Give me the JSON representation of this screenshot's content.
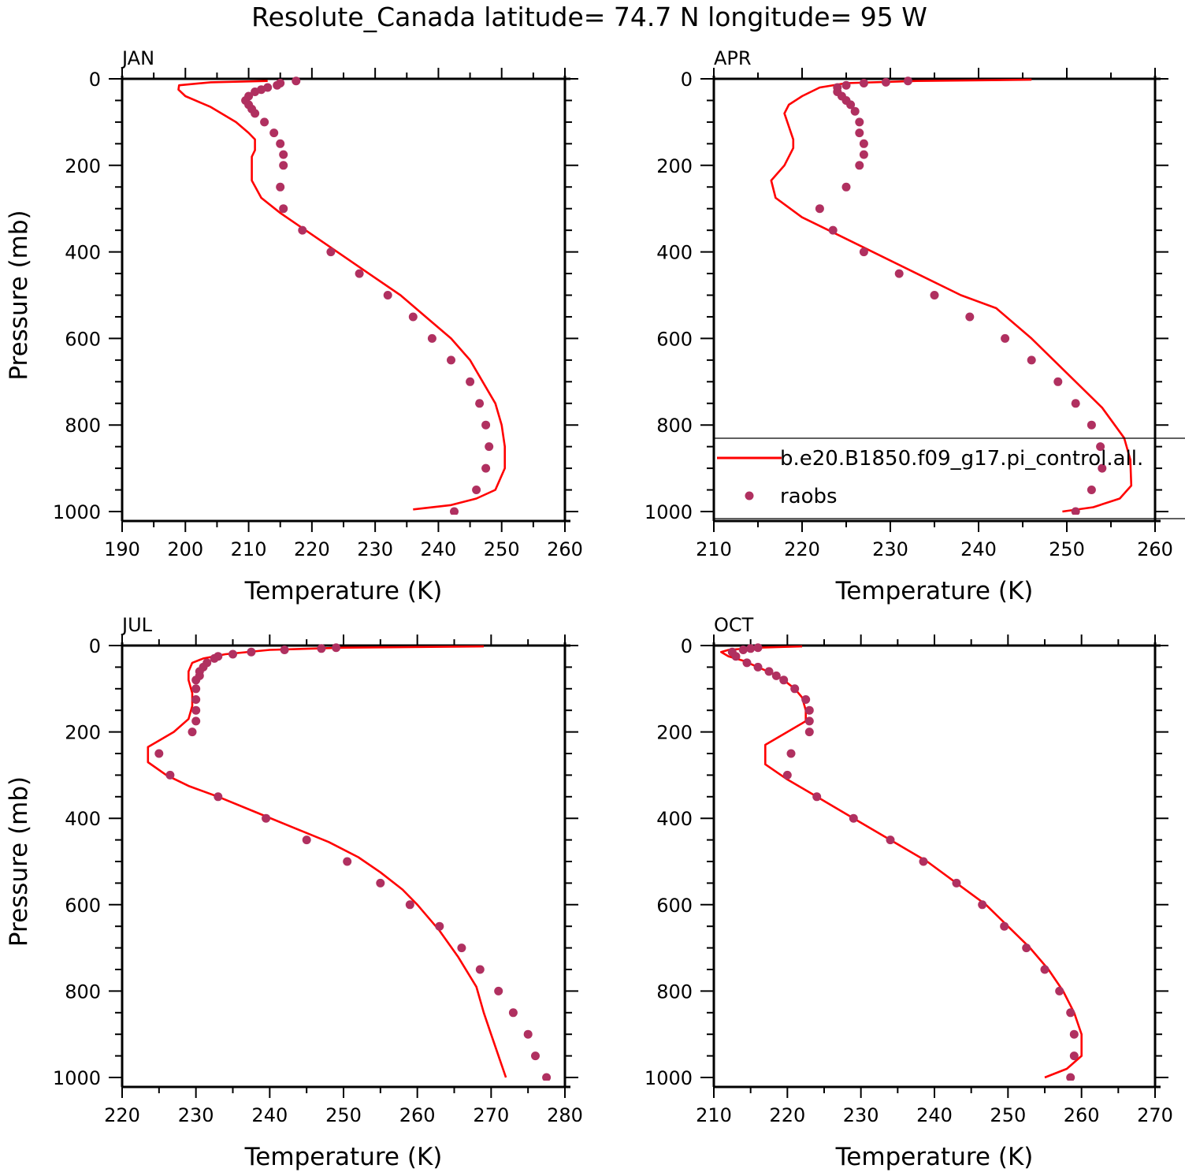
{
  "title": "Resolute_Canada  latitude= 74.7 N longitude= 95 W",
  "colors": {
    "model": "#ff0000",
    "obs": "#b03060",
    "axis": "#000000"
  },
  "legend": {
    "model_label": "b.e20.B1850.f09_g17.pi_control.all.",
    "obs_label": "raobs"
  },
  "chart_data": [
    {
      "type": "line",
      "panel": "JAN",
      "xlabel": "Temperature (K)",
      "ylabel": "Pressure (mb)",
      "xlim": [
        190,
        260
      ],
      "xticks": [
        190,
        200,
        210,
        220,
        230,
        240,
        250,
        260
      ],
      "ylim": [
        0,
        1000
      ],
      "yticks": [
        0,
        200,
        400,
        600,
        800,
        1000
      ],
      "y_inverted": true,
      "series": [
        {
          "name": "b.e20.B1850.f09_g17.pi_control.all.",
          "style": "line",
          "points": [
            [
              213,
              5
            ],
            [
              204,
              8
            ],
            [
              199,
              15
            ],
            [
              198.9,
              25
            ],
            [
              200,
              40
            ],
            [
              204,
              65
            ],
            [
              208,
              100
            ],
            [
              210,
              125
            ],
            [
              211,
              140
            ],
            [
              211,
              165
            ],
            [
              210.5,
              180
            ],
            [
              210.5,
              200
            ],
            [
              210.5,
              235
            ],
            [
              212,
              275
            ],
            [
              215,
              310
            ],
            [
              219,
              350
            ],
            [
              224,
              400
            ],
            [
              229,
              450
            ],
            [
              234,
              500
            ],
            [
              238,
              550
            ],
            [
              242,
              600
            ],
            [
              245,
              650
            ],
            [
              247,
              700
            ],
            [
              249,
              750
            ],
            [
              250,
              800
            ],
            [
              250.5,
              850
            ],
            [
              250.5,
              900
            ],
            [
              249,
              950
            ],
            [
              246,
              970
            ],
            [
              242,
              985
            ],
            [
              236,
              995
            ]
          ]
        },
        {
          "name": "raobs",
          "style": "marker",
          "points": [
            [
              217.5,
              5
            ],
            [
              215,
              10
            ],
            [
              214.5,
              15
            ],
            [
              213,
              20
            ],
            [
              212,
              25
            ],
            [
              211,
              30
            ],
            [
              210,
              40
            ],
            [
              209.5,
              50
            ],
            [
              210,
              60
            ],
            [
              210.5,
              70
            ],
            [
              211,
              80
            ],
            [
              212.5,
              100
            ],
            [
              214,
              125
            ],
            [
              215,
              150
            ],
            [
              215.5,
              175
            ],
            [
              215.5,
              200
            ],
            [
              215,
              250
            ],
            [
              215.5,
              300
            ],
            [
              218.5,
              350
            ],
            [
              223,
              400
            ],
            [
              227.5,
              450
            ],
            [
              232,
              500
            ],
            [
              236,
              550
            ],
            [
              239,
              600
            ],
            [
              242,
              650
            ],
            [
              245,
              700
            ],
            [
              246.5,
              750
            ],
            [
              247.5,
              800
            ],
            [
              248,
              850
            ],
            [
              247.5,
              900
            ],
            [
              246,
              950
            ],
            [
              242.5,
              1000
            ]
          ]
        }
      ]
    },
    {
      "type": "line",
      "panel": "APR",
      "xlabel": "Temperature (K)",
      "ylabel": "",
      "xlim": [
        210,
        260
      ],
      "xticks": [
        210,
        220,
        230,
        240,
        250,
        260
      ],
      "ylim": [
        0,
        1000
      ],
      "yticks": [
        0,
        200,
        400,
        600,
        800,
        1000
      ],
      "y_inverted": true,
      "series": [
        {
          "name": "b.e20.B1850.f09_g17.pi_control.all.",
          "style": "line",
          "points": [
            [
              246,
              2
            ],
            [
              233,
              5
            ],
            [
              225,
              10
            ],
            [
              222,
              20
            ],
            [
              220,
              40
            ],
            [
              218.5,
              60
            ],
            [
              218,
              80
            ],
            [
              218.5,
              110
            ],
            [
              219,
              140
            ],
            [
              219,
              160
            ],
            [
              218,
              200
            ],
            [
              216.5,
              235
            ],
            [
              217,
              275
            ],
            [
              220,
              320
            ],
            [
              224,
              360
            ],
            [
              228,
              400
            ],
            [
              233,
              450
            ],
            [
              238,
              500
            ],
            [
              242,
              530
            ],
            [
              246,
              600
            ],
            [
              250,
              680
            ],
            [
              254,
              760
            ],
            [
              256.5,
              830
            ],
            [
              257.2,
              880
            ],
            [
              257.3,
              940
            ],
            [
              256,
              970
            ],
            [
              253,
              990
            ],
            [
              249.5,
              1000
            ]
          ]
        },
        {
          "name": "raobs",
          "style": "marker",
          "points": [
            [
              232,
              5
            ],
            [
              229.5,
              8
            ],
            [
              227,
              10
            ],
            [
              225,
              15
            ],
            [
              224,
              20
            ],
            [
              224,
              30
            ],
            [
              224.5,
              40
            ],
            [
              225,
              50
            ],
            [
              225.5,
              60
            ],
            [
              226,
              75
            ],
            [
              226.5,
              100
            ],
            [
              226.5,
              125
            ],
            [
              227,
              150
            ],
            [
              227,
              175
            ],
            [
              226.5,
              200
            ],
            [
              225,
              250
            ],
            [
              222,
              300
            ],
            [
              223.5,
              350
            ],
            [
              227,
              400
            ],
            [
              231,
              450
            ],
            [
              235,
              500
            ],
            [
              239,
              550
            ],
            [
              243,
              600
            ],
            [
              246,
              650
            ],
            [
              249,
              700
            ],
            [
              251,
              750
            ],
            [
              252.8,
              800
            ],
            [
              253.8,
              850
            ],
            [
              254,
              900
            ],
            [
              252.8,
              950
            ],
            [
              251,
              1000
            ]
          ]
        }
      ]
    },
    {
      "type": "line",
      "panel": "JUL",
      "xlabel": "Temperature (K)",
      "ylabel": "Pressure (mb)",
      "xlim": [
        220,
        280
      ],
      "xticks": [
        220,
        230,
        240,
        250,
        260,
        270,
        280
      ],
      "ylim": [
        0,
        1000
      ],
      "yticks": [
        0,
        200,
        400,
        600,
        800,
        1000
      ],
      "y_inverted": true,
      "series": [
        {
          "name": "b.e20.B1850.f09_g17.pi_control.all.",
          "style": "line",
          "points": [
            [
              269,
              2
            ],
            [
              250,
              5
            ],
            [
              240,
              10
            ],
            [
              234,
              20
            ],
            [
              231,
              30
            ],
            [
              229.5,
              40
            ],
            [
              229,
              60
            ],
            [
              229,
              80
            ],
            [
              229.5,
              110
            ],
            [
              229.5,
              140
            ],
            [
              229,
              170
            ],
            [
              227,
              200
            ],
            [
              225,
              220
            ],
            [
              223.5,
              235
            ],
            [
              223.5,
              270
            ],
            [
              226,
              300
            ],
            [
              229,
              325
            ],
            [
              233,
              350
            ],
            [
              238,
              385
            ],
            [
              243,
              420
            ],
            [
              248,
              455
            ],
            [
              252,
              490
            ],
            [
              255,
              525
            ],
            [
              258,
              565
            ],
            [
              260,
              600
            ],
            [
              263,
              660
            ],
            [
              265.5,
              720
            ],
            [
              268,
              790
            ],
            [
              269,
              850
            ],
            [
              270,
              900
            ],
            [
              271,
              950
            ],
            [
              272,
              1000
            ]
          ]
        },
        {
          "name": "raobs",
          "style": "marker",
          "points": [
            [
              249,
              5
            ],
            [
              247,
              7
            ],
            [
              242,
              10
            ],
            [
              237.5,
              15
            ],
            [
              235,
              20
            ],
            [
              233,
              25
            ],
            [
              232.5,
              30
            ],
            [
              231.5,
              40
            ],
            [
              231,
              50
            ],
            [
              230.5,
              60
            ],
            [
              230.5,
              70
            ],
            [
              230,
              80
            ],
            [
              230,
              100
            ],
            [
              230,
              125
            ],
            [
              230,
              150
            ],
            [
              230,
              175
            ],
            [
              229.5,
              200
            ],
            [
              225,
              250
            ],
            [
              226.5,
              300
            ],
            [
              233,
              350
            ],
            [
              239.5,
              400
            ],
            [
              245,
              450
            ],
            [
              250.5,
              500
            ],
            [
              255,
              550
            ],
            [
              259,
              600
            ],
            [
              263,
              650
            ],
            [
              266,
              700
            ],
            [
              268.5,
              750
            ],
            [
              271,
              800
            ],
            [
              273,
              850
            ],
            [
              275,
              900
            ],
            [
              276,
              950
            ],
            [
              277.5,
              1000
            ]
          ]
        }
      ]
    },
    {
      "type": "line",
      "panel": "OCT",
      "xlabel": "Temperature (K)",
      "ylabel": "",
      "xlim": [
        210,
        270
      ],
      "xticks": [
        210,
        220,
        230,
        240,
        250,
        260,
        270
      ],
      "ylim": [
        0,
        1000
      ],
      "yticks": [
        0,
        200,
        400,
        600,
        800,
        1000
      ],
      "y_inverted": true,
      "series": [
        {
          "name": "b.e20.B1850.f09_g17.pi_control.all.",
          "style": "line",
          "points": [
            [
              222,
              2
            ],
            [
              216,
              5
            ],
            [
              212,
              10
            ],
            [
              211,
              15
            ],
            [
              212,
              25
            ],
            [
              214,
              35
            ],
            [
              216,
              50
            ],
            [
              218,
              65
            ],
            [
              219.5,
              80
            ],
            [
              221,
              100
            ],
            [
              222,
              120
            ],
            [
              222.5,
              150
            ],
            [
              222.5,
              175
            ],
            [
              220,
              200
            ],
            [
              217,
              230
            ],
            [
              217,
              275
            ],
            [
              220,
              310
            ],
            [
              224,
              350
            ],
            [
              229,
              400
            ],
            [
              234,
              450
            ],
            [
              239,
              500
            ],
            [
              243,
              550
            ],
            [
              247,
              600
            ],
            [
              250,
              650
            ],
            [
              253,
              700
            ],
            [
              255.5,
              750
            ],
            [
              257.5,
              800
            ],
            [
              259,
              850
            ],
            [
              260,
              900
            ],
            [
              260,
              950
            ],
            [
              258,
              980
            ],
            [
              255,
              1000
            ]
          ]
        },
        {
          "name": "raobs",
          "style": "marker",
          "points": [
            [
              216,
              5
            ],
            [
              215,
              7
            ],
            [
              214,
              10
            ],
            [
              212.5,
              15
            ],
            [
              213,
              25
            ],
            [
              214.5,
              40
            ],
            [
              216,
              50
            ],
            [
              217.5,
              60
            ],
            [
              218.5,
              70
            ],
            [
              219.5,
              80
            ],
            [
              221,
              100
            ],
            [
              222.5,
              125
            ],
            [
              223,
              150
            ],
            [
              223,
              175
            ],
            [
              223,
              200
            ],
            [
              220.5,
              250
            ],
            [
              220,
              300
            ],
            [
              224,
              350
            ],
            [
              229,
              400
            ],
            [
              234,
              450
            ],
            [
              238.5,
              500
            ],
            [
              243,
              550
            ],
            [
              246.5,
              600
            ],
            [
              249.5,
              650
            ],
            [
              252.5,
              700
            ],
            [
              255,
              750
            ],
            [
              257,
              800
            ],
            [
              258.5,
              850
            ],
            [
              259,
              900
            ],
            [
              259,
              950
            ],
            [
              258.5,
              1000
            ]
          ]
        }
      ]
    }
  ]
}
